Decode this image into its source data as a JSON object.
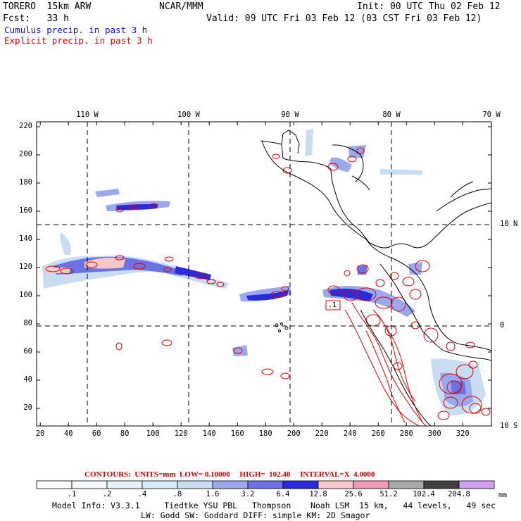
{
  "header": {
    "model": "TORERO  15km ARW",
    "org": "NCAR/MMM",
    "init": "Init: 00 UTC Thu 02 Feb 12",
    "fcst": "Fcst:   33 h",
    "valid": "Valid: 09 UTC Fri 03 Feb 12 (03 CST Fri 03 Feb 12)",
    "legend_cumulus": "Cumulus precip. in past 3 h",
    "legend_explicit": "Explicit precip. in past 3 h"
  },
  "map": {
    "x_ticks": [
      "20",
      "40",
      "60",
      "80",
      "100",
      "120",
      "140",
      "160",
      "180",
      "200",
      "220",
      "240",
      "260",
      "280",
      "300",
      "320"
    ],
    "y_ticks": [
      "20",
      "40",
      "60",
      "80",
      "100",
      "120",
      "140",
      "160",
      "180",
      "200",
      "220"
    ],
    "lon_labels": [
      "110 W",
      "100 W",
      "90 W",
      "80 W",
      "70 W"
    ],
    "lat_labels": [
      "10 N",
      "0",
      "10 S"
    ],
    "max_label": ".1"
  },
  "contours": {
    "label": "CONTOURS:  UNITS=mm  LOW= 0.10000     HIGH=  102.40     INTERVAL=X  4.0000"
  },
  "colorbar": {
    "labels": [
      ".1",
      ".2",
      ".4",
      ".8",
      "1.6",
      "3.2",
      "6.4",
      "12.8",
      "25.6",
      "51.2",
      "102.4",
      "204.8"
    ],
    "unit": "mm",
    "colors": [
      "#ffffff",
      "#f2f8fc",
      "#e6f2fa",
      "#d6ecf8",
      "#c8dcf2",
      "#9aa8ee",
      "#6a72e4",
      "#2a2ae0",
      "#f8c8c8",
      "#f09ab8",
      "#a8a8a8",
      "#404040",
      "#d0a0f0"
    ]
  },
  "footer": {
    "line1": "Model Info: V3.3.1     Tiedtke YSU PBL   Thompson    Noah LSM  15 km,   44 levels,   49 sec",
    "line2": "LW: Godd SW: Goddard DIFF: simple KM: 2D Smagor"
  }
}
